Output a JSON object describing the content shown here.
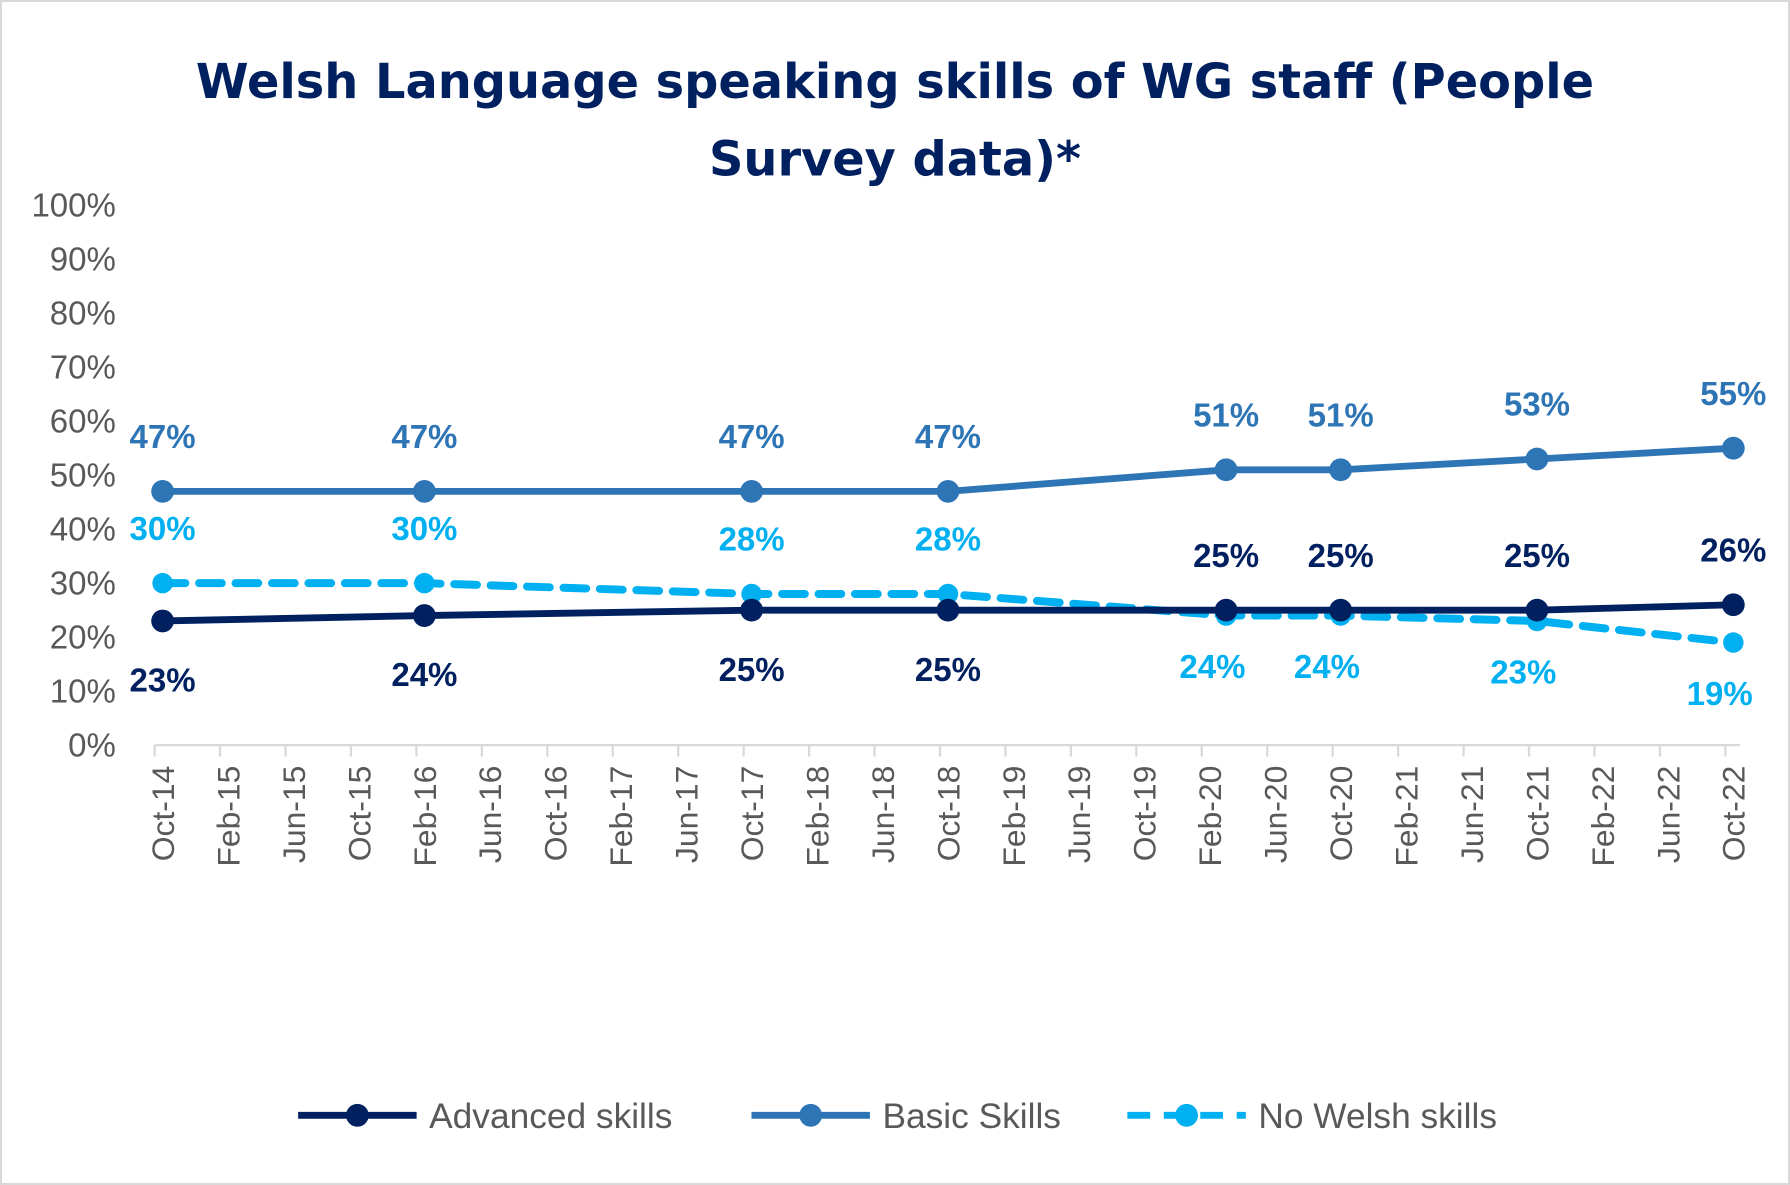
{
  "chart_data": {
    "type": "line",
    "title_lines": [
      "Welsh Language speaking skills of WG staff (People",
      "Survey data)*"
    ],
    "xlabel": "",
    "ylabel": "",
    "ylim": [
      0,
      100
    ],
    "yticks": [
      "0%",
      "10%",
      "20%",
      "30%",
      "40%",
      "50%",
      "60%",
      "70%",
      "80%",
      "90%",
      "100%"
    ],
    "xtick_labels": [
      "Oct-14",
      "Feb-15",
      "Jun-15",
      "Oct-15",
      "Feb-16",
      "Jun-16",
      "Oct-16",
      "Feb-17",
      "Jun-17",
      "Oct-17",
      "Feb-18",
      "Jun-18",
      "Oct-18",
      "Feb-19",
      "Jun-19",
      "Oct-19",
      "Feb-20",
      "Jun-20",
      "Oct-20",
      "Feb-21",
      "Jun-21",
      "Oct-21",
      "Feb-22",
      "Jun-22",
      "Oct-22"
    ],
    "x_months_from_start": [
      0,
      16,
      36,
      48,
      65,
      72,
      84,
      96
    ],
    "x_dates": [
      "Oct-14",
      "Feb-16",
      "Oct-17",
      "Oct-18",
      "Mar-20",
      "Oct-20",
      "Oct-21",
      "Oct-22"
    ],
    "grid": false,
    "legend_position": "bottom",
    "series": [
      {
        "name": "Advanced skills",
        "color": "#002060",
        "dashed": false,
        "values": [
          23,
          24,
          25,
          25,
          25,
          25,
          25,
          26
        ],
        "labels": [
          "23%",
          "24%",
          "25%",
          "25%",
          "25%",
          "25%",
          "25%",
          "26%"
        ],
        "label_pos": [
          "below",
          "below",
          "below",
          "below",
          "above",
          "above",
          "above",
          "above"
        ]
      },
      {
        "name": "Basic Skills",
        "color": "#2E75B6",
        "dashed": false,
        "values": [
          47,
          47,
          47,
          47,
          51,
          51,
          53,
          55
        ],
        "labels": [
          "47%",
          "47%",
          "47%",
          "47%",
          "51%",
          "51%",
          "53%",
          "55%"
        ],
        "label_pos": [
          "above",
          "above",
          "above",
          "above",
          "above",
          "above",
          "above",
          "above"
        ]
      },
      {
        "name": "No Welsh skills",
        "color": "#00B0F0",
        "dashed": true,
        "values": [
          30,
          30,
          28,
          28,
          24,
          24,
          23,
          19
        ],
        "labels": [
          "30%",
          "30%",
          "28%",
          "28%",
          "24%",
          "24%",
          "23%",
          "19%"
        ],
        "label_pos": [
          "above",
          "above",
          "above",
          "above",
          "below",
          "below",
          "below",
          "below"
        ]
      }
    ]
  }
}
